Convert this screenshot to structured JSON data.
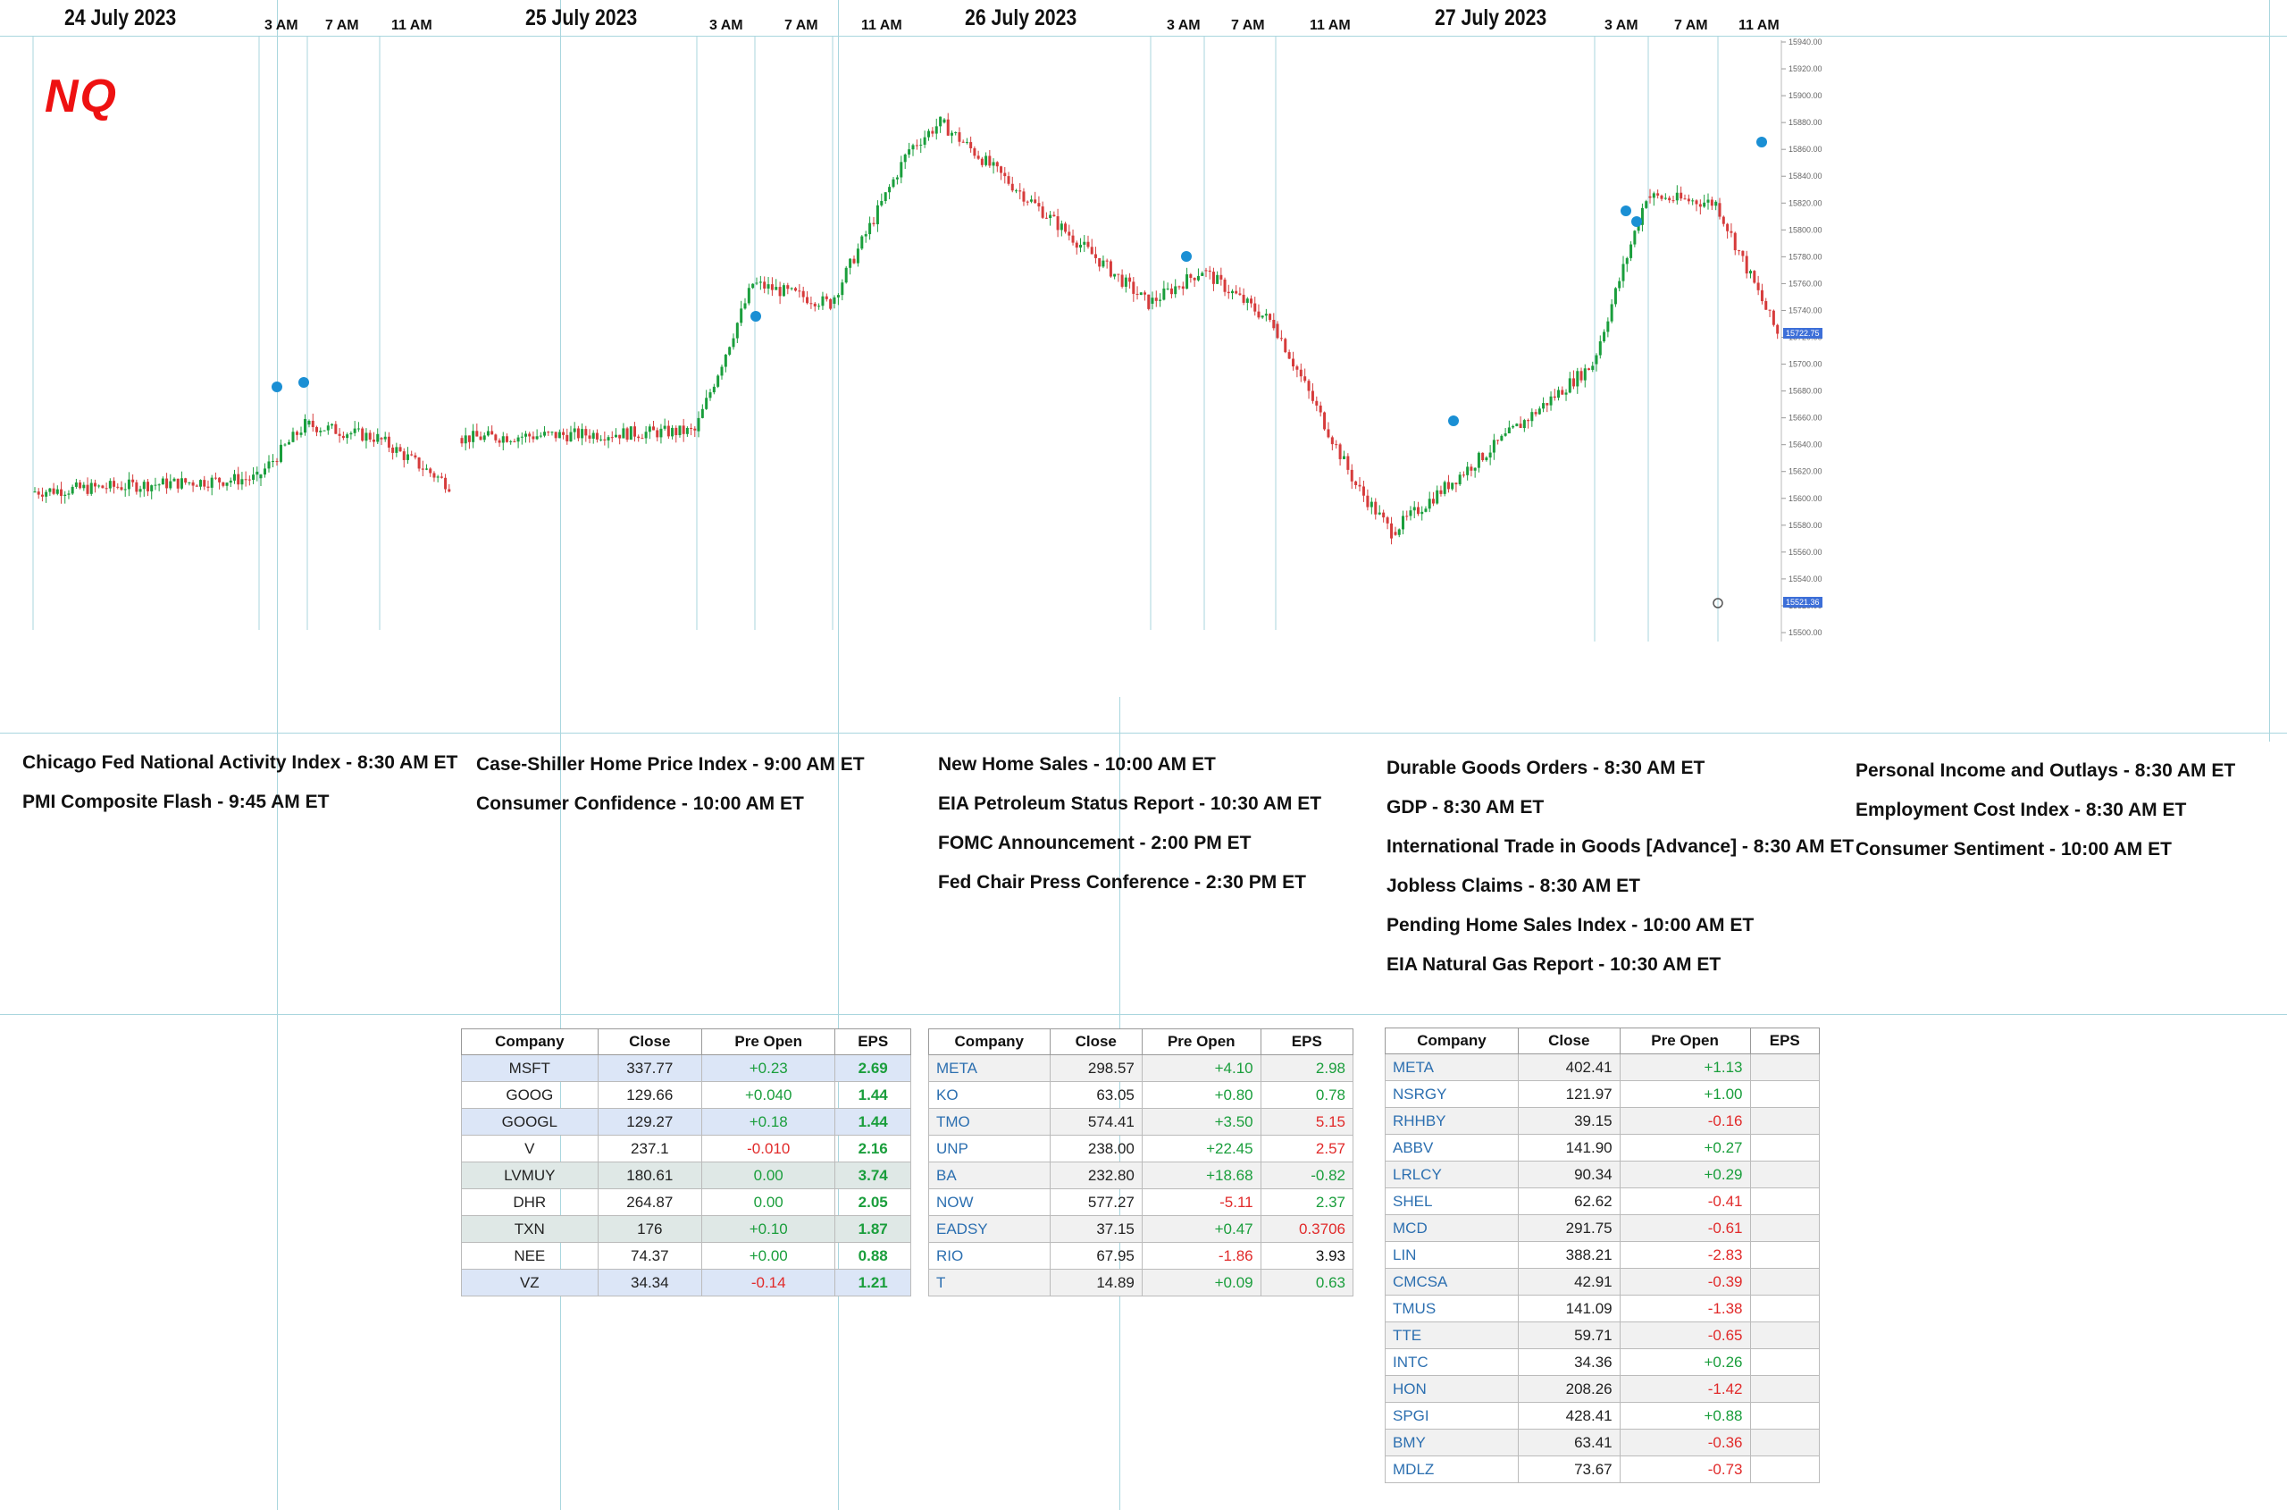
{
  "title": "NQ",
  "days": [
    {
      "label": "24 July 2023",
      "hours": [
        "3 AM",
        "7 AM",
        "11 AM"
      ],
      "events": [
        "Chicago Fed National Activity Index -  8:30 AM ET",
        "PMI Composite Flash - 9:45 AM ET"
      ]
    },
    {
      "label": "25 July 2023",
      "hours": [
        "3 AM",
        "7 AM",
        "11 AM"
      ],
      "events": [
        "Case-Shiller Home Price Index - 9:00 AM ET",
        "Consumer Confidence - 10:00 AM ET"
      ]
    },
    {
      "label": "26 July 2023",
      "hours": [
        "3 AM",
        "7 AM",
        "11 AM"
      ],
      "events": [
        "New Home Sales - 10:00 AM ET",
        "EIA Petroleum Status Report - 10:30 AM ET",
        "FOMC Announcement - 2:00 PM ET",
        "Fed Chair Press Conference - 2:30 PM ET"
      ]
    },
    {
      "label": "27 July 2023",
      "hours": [
        "3 AM",
        "7 AM",
        "11 AM"
      ],
      "events": [
        "Durable Goods Orders - 8:30 AM ET",
        "GDP - 8:30 AM ET",
        "International Trade in Goods [Advance] - 8:30 AM ET",
        "Jobless Claims - 8:30 AM ET",
        "Pending Home Sales Index - 10:00 AM ET",
        "EIA Natural Gas Report - 10:30 AM ET"
      ]
    },
    {
      "label": "",
      "hours": [],
      "events": [
        "Personal Income and Outlays - 8:30 AM ET",
        "Employment Cost Index - 8:30 AM ET",
        "Consumer Sentiment - 10:00 AM ET"
      ]
    }
  ],
  "price_axis": {
    "ticks": [
      "15940.00",
      "15920.00",
      "15900.00",
      "15880.00",
      "15860.00",
      "15840.00",
      "15820.00",
      "15800.00",
      "15780.00",
      "15760.00",
      "15740.00",
      "15720.00",
      "15700.00",
      "15680.00",
      "15660.00",
      "15640.00",
      "15620.00",
      "15600.00",
      "15580.00",
      "15560.00",
      "15540.00",
      "15520.00",
      "15500.00"
    ],
    "last_price": "15722.75",
    "low_label": "15521.36"
  },
  "chart_data": {
    "type": "line",
    "title": "NQ",
    "xlabel": "",
    "ylabel": "",
    "ylim": [
      15500,
      15940
    ],
    "x": [
      "24 Jul 00:00",
      "24 Jul 03:00",
      "24 Jul 07:00",
      "24 Jul 11:00",
      "24 Jul 16:00",
      "25 Jul 00:00",
      "25 Jul 03:00",
      "25 Jul 07:00",
      "25 Jul 11:00",
      "25 Jul 16:00",
      "26 Jul 00:00",
      "26 Jul 03:00",
      "26 Jul 07:00",
      "26 Jul 11:00",
      "26 Jul 16:00",
      "27 Jul 00:00",
      "27 Jul 03:00",
      "27 Jul 07:00",
      "27 Jul 11:00",
      "27 Jul 13:00"
    ],
    "series": [
      {
        "values": [
          15605,
          15615,
          15655,
          15645,
          15610,
          15645,
          15650,
          15760,
          15745,
          15860,
          15880,
          15745,
          15770,
          15730,
          15610,
          15575,
          15700,
          15825,
          15820,
          15722.75
        ]
      }
    ],
    "grid": false
  },
  "tables": [
    {
      "headers": [
        "Company",
        "Close",
        "Pre Open",
        "EPS"
      ],
      "rows": [
        {
          "company": "MSFT",
          "close": "337.77",
          "pre": "+0.23",
          "eps": "2.69",
          "pre_sign": "pos",
          "eps_sign": "pos",
          "hl": "hl"
        },
        {
          "company": "GOOG",
          "close": "129.66",
          "pre": "+0.040",
          "eps": "1.44",
          "pre_sign": "pos",
          "eps_sign": "pos",
          "hl": ""
        },
        {
          "company": "GOOGL",
          "close": "129.27",
          "pre": "+0.18",
          "eps": "1.44",
          "pre_sign": "pos",
          "eps_sign": "pos",
          "hl": "hl"
        },
        {
          "company": "V",
          "close": "237.1",
          "pre": "-0.010",
          "eps": "2.16",
          "pre_sign": "neg",
          "eps_sign": "pos",
          "hl": ""
        },
        {
          "company": "LVMUY",
          "close": "180.61",
          "pre": "0.00",
          "eps": "3.74",
          "pre_sign": "pos",
          "eps_sign": "pos",
          "hl": "hl2"
        },
        {
          "company": "DHR",
          "close": "264.87",
          "pre": "0.00",
          "eps": "2.05",
          "pre_sign": "pos",
          "eps_sign": "pos",
          "hl": ""
        },
        {
          "company": "TXN",
          "close": "176",
          "pre": "+0.10",
          "eps": "1.87",
          "pre_sign": "pos",
          "eps_sign": "pos",
          "hl": "hl2"
        },
        {
          "company": "NEE",
          "close": "74.37",
          "pre": "+0.00",
          "eps": "0.88",
          "pre_sign": "pos",
          "eps_sign": "pos",
          "hl": ""
        },
        {
          "company": "VZ",
          "close": "34.34",
          "pre": "-0.14",
          "eps": "1.21",
          "pre_sign": "neg",
          "eps_sign": "pos",
          "hl": "hl"
        }
      ]
    },
    {
      "headers": [
        "Company",
        "Close",
        "Pre Open",
        "EPS"
      ],
      "rows": [
        {
          "company": "META",
          "close": "298.57",
          "pre": "+4.10",
          "eps": "2.98",
          "pre_sign": "pos",
          "eps_sign": "pos"
        },
        {
          "company": "KO",
          "close": "63.05",
          "pre": "+0.80",
          "eps": "0.78",
          "pre_sign": "pos",
          "eps_sign": "pos"
        },
        {
          "company": "TMO",
          "close": "574.41",
          "pre": "+3.50",
          "eps": "5.15",
          "pre_sign": "pos",
          "eps_sign": "neg"
        },
        {
          "company": "UNP",
          "close": "238.00",
          "pre": "+22.45",
          "eps": "2.57",
          "pre_sign": "pos",
          "eps_sign": "neg"
        },
        {
          "company": "BA",
          "close": "232.80",
          "pre": "+18.68",
          "eps": "-0.82",
          "pre_sign": "pos",
          "eps_sign": "pos"
        },
        {
          "company": "NOW",
          "close": "577.27",
          "pre": "-5.11",
          "eps": "2.37",
          "pre_sign": "neg",
          "eps_sign": "pos"
        },
        {
          "company": "EADSY",
          "close": "37.15",
          "pre": "+0.47",
          "eps": "0.3706",
          "pre_sign": "pos",
          "eps_sign": "neg"
        },
        {
          "company": "RIO",
          "close": "67.95",
          "pre": "-1.86",
          "eps": "3.93",
          "pre_sign": "neg",
          "eps_sign": "plain"
        },
        {
          "company": "T",
          "close": "14.89",
          "pre": "+0.09",
          "eps": "0.63",
          "pre_sign": "pos",
          "eps_sign": "pos"
        }
      ]
    },
    {
      "headers": [
        "Company",
        "Close",
        "Pre Open",
        "EPS"
      ],
      "rows": [
        {
          "company": "META",
          "close": "402.41",
          "pre": "+1.13",
          "eps": "",
          "pre_sign": "pos"
        },
        {
          "company": "NSRGY",
          "close": "121.97",
          "pre": "+1.00",
          "eps": "",
          "pre_sign": "pos"
        },
        {
          "company": "RHHBY",
          "close": "39.15",
          "pre": "-0.16",
          "eps": "",
          "pre_sign": "neg"
        },
        {
          "company": "ABBV",
          "close": "141.90",
          "pre": "+0.27",
          "eps": "",
          "pre_sign": "pos"
        },
        {
          "company": "LRLCY",
          "close": "90.34",
          "pre": "+0.29",
          "eps": "",
          "pre_sign": "pos"
        },
        {
          "company": "SHEL",
          "close": "62.62",
          "pre": "-0.41",
          "eps": "",
          "pre_sign": "neg"
        },
        {
          "company": "MCD",
          "close": "291.75",
          "pre": "-0.61",
          "eps": "",
          "pre_sign": "neg"
        },
        {
          "company": "LIN",
          "close": "388.21",
          "pre": "-2.83",
          "eps": "",
          "pre_sign": "neg"
        },
        {
          "company": "CMCSA",
          "close": "42.91",
          "pre": "-0.39",
          "eps": "",
          "pre_sign": "neg"
        },
        {
          "company": "TMUS",
          "close": "141.09",
          "pre": "-1.38",
          "eps": "",
          "pre_sign": "neg"
        },
        {
          "company": "TTE",
          "close": "59.71",
          "pre": "-0.65",
          "eps": "",
          "pre_sign": "neg"
        },
        {
          "company": "INTC",
          "close": "34.36",
          "pre": "+0.26",
          "eps": "",
          "pre_sign": "pos"
        },
        {
          "company": "HON",
          "close": "208.26",
          "pre": "-1.42",
          "eps": "",
          "pre_sign": "neg"
        },
        {
          "company": "SPGI",
          "close": "428.41",
          "pre": "+0.88",
          "eps": "",
          "pre_sign": "pos"
        },
        {
          "company": "BMY",
          "close": "63.41",
          "pre": "-0.36",
          "eps": "",
          "pre_sign": "neg"
        },
        {
          "company": "MDLZ",
          "close": "73.67",
          "pre": "-0.73",
          "eps": "",
          "pre_sign": "neg"
        }
      ]
    }
  ],
  "colors": {
    "up": "#1a9e3c",
    "down": "#d63b3b",
    "grid_line": "#a9d6de",
    "title_red": "#ee1111",
    "marker_blue": "#1a8fd4",
    "last_price_box": "#3d6fd8"
  }
}
